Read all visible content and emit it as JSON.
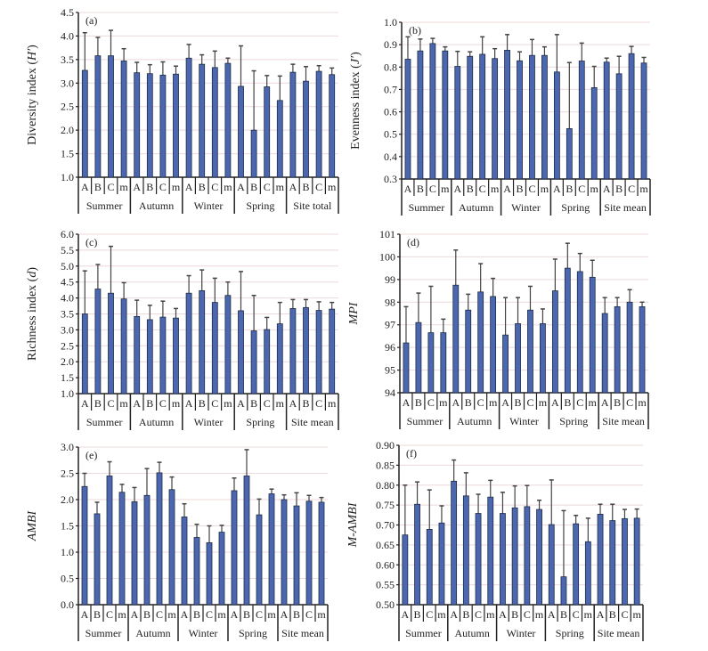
{
  "colors": {
    "bar": "#4a67b0",
    "bar_edge": "#1f2a44",
    "error": "#444444",
    "grid": "#ecd9d9",
    "axis": "#222222"
  },
  "chart_data": [
    {
      "type": "bar",
      "panel": "(a)",
      "ylabel": "Diversity index (",
      "ylabel_var": "H′",
      "ylabel_end": ")",
      "ylabel_italic": false,
      "ylim": [
        1.0,
        4.5
      ],
      "ystep": 0.5,
      "decimals": 1,
      "groups": [
        "Summer",
        "Autumn",
        "Winter",
        "Spring",
        "Site total"
      ],
      "categories": [
        "A",
        "B",
        "C",
        "m"
      ],
      "values": [
        [
          3.27,
          3.58,
          3.58,
          3.47
        ],
        [
          3.22,
          3.2,
          3.17,
          3.19
        ],
        [
          3.53,
          3.4,
          3.33,
          3.42
        ],
        [
          2.93,
          2.0,
          2.92,
          2.63
        ],
        [
          3.23,
          3.04,
          3.25,
          3.18
        ]
      ],
      "error_upper": [
        [
          4.07,
          3.97,
          4.12,
          3.73
        ],
        [
          3.44,
          3.39,
          3.45,
          3.36
        ],
        [
          3.82,
          3.6,
          3.68,
          3.53
        ],
        [
          3.79,
          3.26,
          3.16,
          3.15
        ],
        [
          3.4,
          3.35,
          3.37,
          3.32
        ]
      ]
    },
    {
      "type": "bar",
      "panel": "(b)",
      "ylabel": "Evenness index (",
      "ylabel_var": "J′",
      "ylabel_end": ")",
      "ylabel_italic": false,
      "ylim": [
        0.3,
        1.0
      ],
      "ystep": 0.1,
      "decimals": 1,
      "groups": [
        "Summer",
        "Autumn",
        "Winter",
        "Spring",
        "Site mean"
      ],
      "categories": [
        "A",
        "B",
        "C",
        "m"
      ],
      "values": [
        [
          0.835,
          0.872,
          0.905,
          0.872
        ],
        [
          0.803,
          0.848,
          0.857,
          0.838
        ],
        [
          0.875,
          0.828,
          0.852,
          0.852
        ],
        [
          0.778,
          0.525,
          0.827,
          0.708
        ],
        [
          0.822,
          0.77,
          0.86,
          0.818
        ]
      ],
      "error_upper": [
        [
          0.935,
          0.925,
          0.928,
          0.89
        ],
        [
          0.87,
          0.868,
          0.935,
          0.882
        ],
        [
          0.945,
          0.868,
          0.923,
          0.89
        ],
        [
          0.945,
          0.82,
          0.907,
          0.803
        ],
        [
          0.84,
          0.848,
          0.892,
          0.843
        ]
      ]
    },
    {
      "type": "bar",
      "panel": "(c)",
      "ylabel": "Richness index (",
      "ylabel_var": "d",
      "ylabel_end": ")",
      "ylabel_italic": false,
      "ylim": [
        1.0,
        6.0
      ],
      "ystep": 0.5,
      "decimals": 1,
      "groups": [
        "Summer",
        "Autumn",
        "Winter",
        "Spring",
        "Site mean"
      ],
      "categories": [
        "A",
        "B",
        "C",
        "m"
      ],
      "values": [
        [
          3.5,
          4.28,
          4.15,
          3.97
        ],
        [
          3.42,
          3.32,
          3.4,
          3.37
        ],
        [
          4.15,
          4.23,
          3.86,
          4.08
        ],
        [
          3.6,
          2.97,
          3.01,
          3.19
        ],
        [
          3.67,
          3.7,
          3.61,
          3.65
        ]
      ],
      "error_upper": [
        [
          4.85,
          5.05,
          5.62,
          4.48
        ],
        [
          3.93,
          3.77,
          3.9,
          3.67
        ],
        [
          4.7,
          4.88,
          4.62,
          4.5
        ],
        [
          4.83,
          4.08,
          3.39,
          3.86
        ],
        [
          3.95,
          3.95,
          3.88,
          3.86
        ]
      ]
    },
    {
      "type": "bar",
      "panel": "(d)",
      "ylabel": "",
      "ylabel_var": "MPI",
      "ylabel_end": "",
      "ylabel_italic": true,
      "ylim": [
        94,
        101
      ],
      "ystep": 1,
      "decimals": 0,
      "groups": [
        "Summer",
        "Autumn",
        "Winter",
        "Spring",
        "Site mean"
      ],
      "categories": [
        "A",
        "B",
        "C",
        "m"
      ],
      "values": [
        [
          96.2,
          97.1,
          96.65,
          96.65
        ],
        [
          98.75,
          97.65,
          98.45,
          98.25
        ],
        [
          96.55,
          97.05,
          97.65,
          97.05
        ],
        [
          98.5,
          99.5,
          99.35,
          99.1
        ],
        [
          97.5,
          97.8,
          98.0,
          97.8
        ]
      ],
      "error_upper": [
        [
          97.8,
          98.4,
          98.7,
          97.25
        ],
        [
          100.3,
          98.35,
          99.7,
          99.05
        ],
        [
          98.2,
          98.2,
          98.7,
          97.7
        ],
        [
          99.9,
          100.6,
          100.15,
          99.85
        ],
        [
          98.2,
          98.2,
          98.55,
          98.0
        ]
      ]
    },
    {
      "type": "bar",
      "panel": "(e)",
      "ylabel": "",
      "ylabel_var": "AMBI",
      "ylabel_end": "",
      "ylabel_italic": true,
      "ylim": [
        0.0,
        3.0
      ],
      "ystep": 0.5,
      "decimals": 1,
      "groups": [
        "Summer",
        "Autumn",
        "Winter",
        "Spring",
        "Site mean"
      ],
      "categories": [
        "A",
        "B",
        "C",
        "m"
      ],
      "values": [
        [
          2.25,
          1.73,
          2.45,
          2.14
        ],
        [
          1.96,
          2.08,
          2.51,
          2.19
        ],
        [
          1.67,
          1.28,
          1.18,
          1.38
        ],
        [
          2.17,
          2.45,
          1.71,
          2.11
        ],
        [
          2.0,
          1.88,
          1.97,
          1.95
        ]
      ],
      "error_upper": [
        [
          2.5,
          1.95,
          2.72,
          2.29
        ],
        [
          2.23,
          2.59,
          2.71,
          2.43
        ],
        [
          1.92,
          1.53,
          1.5,
          1.51
        ],
        [
          2.41,
          2.95,
          2.01,
          2.2
        ],
        [
          2.09,
          2.13,
          2.08,
          2.04
        ]
      ]
    },
    {
      "type": "bar",
      "panel": "(f)",
      "ylabel": "",
      "ylabel_var": "M-AMBI",
      "ylabel_end": "",
      "ylabel_italic": true,
      "ylim": [
        0.5,
        0.9
      ],
      "ystep": 0.05,
      "decimals": 2,
      "groups": [
        "Summer",
        "Autumn",
        "Winter",
        "Spring",
        "Site mean"
      ],
      "categories": [
        "A",
        "B",
        "C",
        "m"
      ],
      "values": [
        [
          0.675,
          0.752,
          0.689,
          0.705
        ],
        [
          0.81,
          0.773,
          0.729,
          0.77
        ],
        [
          0.729,
          0.743,
          0.746,
          0.739
        ],
        [
          0.701,
          0.57,
          0.703,
          0.658
        ],
        [
          0.727,
          0.711,
          0.716,
          0.717
        ]
      ],
      "error_upper": [
        [
          0.8,
          0.808,
          0.788,
          0.748
        ],
        [
          0.863,
          0.831,
          0.777,
          0.812
        ],
        [
          0.782,
          0.798,
          0.799,
          0.762
        ],
        [
          0.813,
          0.736,
          0.724,
          0.717
        ],
        [
          0.752,
          0.752,
          0.739,
          0.74
        ]
      ]
    }
  ]
}
